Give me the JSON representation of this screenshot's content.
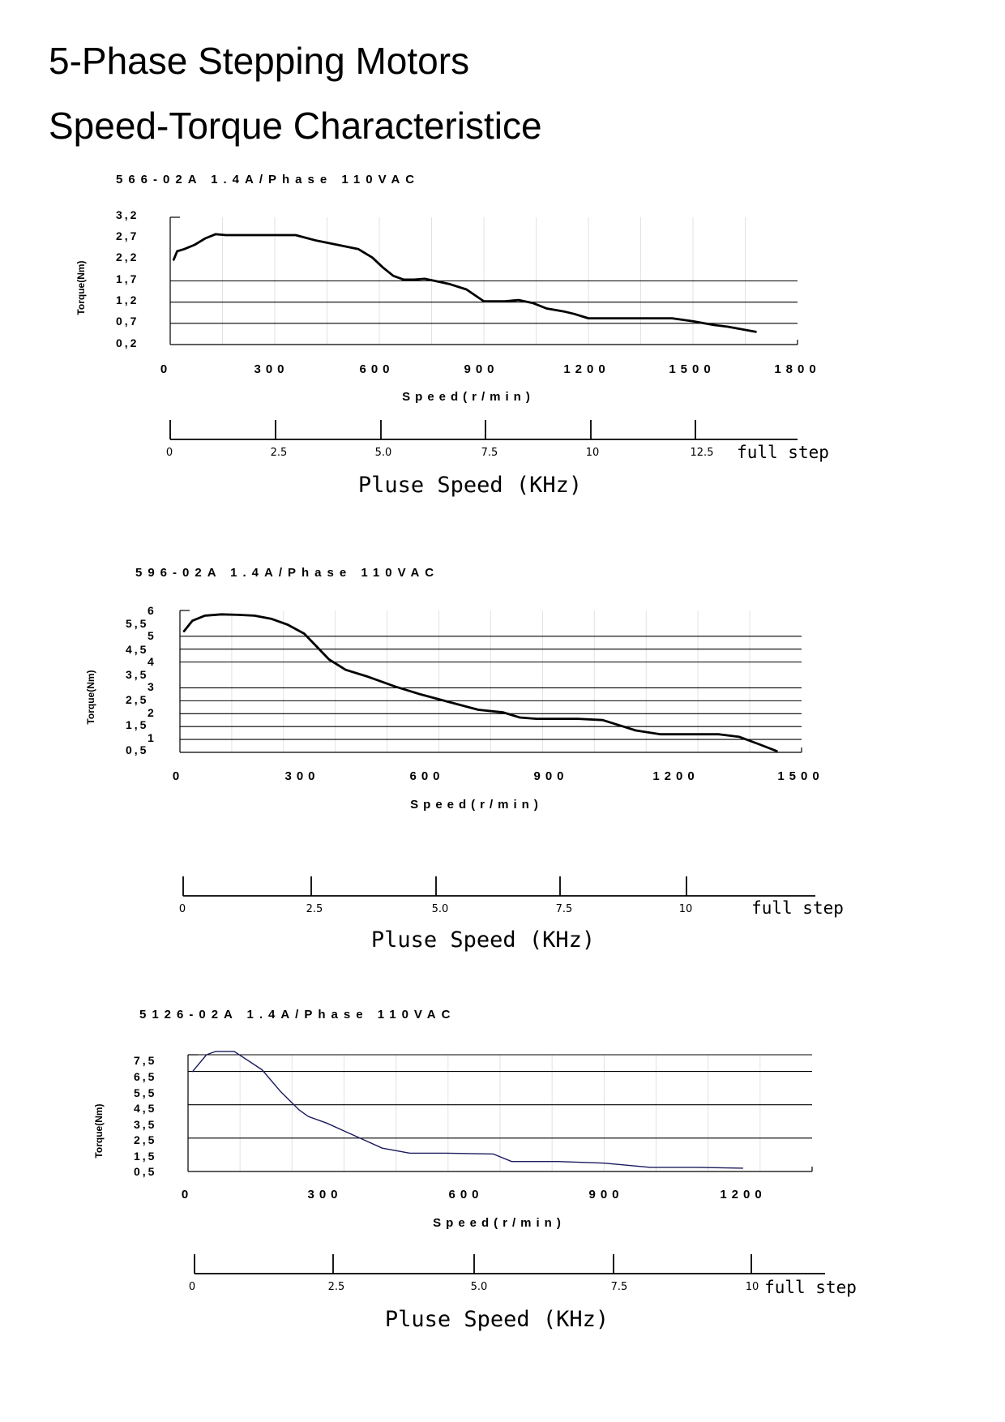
{
  "page": {
    "title_line1": "5-Phase Stepping Motors",
    "title_line2": "Speed-Torque Characteristice"
  },
  "chart_data": [
    {
      "type": "line",
      "header": "566-02A  1.4A/Phase  110VAC",
      "xlabel": "Speed(r/min)",
      "ylabel": "Torque(Nm)",
      "x_ticks": [
        "0",
        "300",
        "600",
        "900",
        "1200",
        "1500",
        "1800"
      ],
      "y_ticks": [
        "3.2",
        "2.7",
        "2.2",
        "1.7",
        "1.2",
        "0.7",
        "0.2"
      ],
      "xlim": [
        0,
        1800
      ],
      "ylim": [
        0.2,
        3.2
      ],
      "h_gridlines": [
        1.7,
        1.2,
        0.7
      ],
      "series": [
        {
          "x": [
            10,
            20,
            40,
            70,
            100,
            130,
            160,
            200,
            260,
            300,
            360,
            420,
            480,
            540,
            580,
            610,
            640,
            670,
            700,
            730,
            760,
            800,
            850,
            900,
            960,
            1000,
            1040,
            1080,
            1130,
            1160,
            1200,
            1260,
            1350,
            1440,
            1500,
            1560,
            1600,
            1680
          ],
          "y": [
            2.2,
            2.4,
            2.45,
            2.55,
            2.7,
            2.8,
            2.78,
            2.78,
            2.78,
            2.78,
            2.78,
            2.65,
            2.55,
            2.45,
            2.25,
            2.02,
            1.82,
            1.73,
            1.73,
            1.75,
            1.7,
            1.63,
            1.5,
            1.22,
            1.22,
            1.25,
            1.18,
            1.05,
            0.98,
            0.92,
            0.82,
            0.82,
            0.82,
            0.82,
            0.75,
            0.66,
            0.62,
            0.5
          ]
        }
      ],
      "pulse_axis": {
        "ticks": [
          "0",
          "2.5",
          "5.0",
          "7.5",
          "10",
          "12.5"
        ],
        "end_label": "full step",
        "title": "Pluse Speed (KHz)"
      }
    },
    {
      "type": "line",
      "header": "596-02A  1.4A/Phase  110VAC",
      "xlabel": "Speed(r/min)",
      "ylabel": "Torque(Nm)",
      "x_ticks": [
        "0",
        "300",
        "600",
        "900",
        "1200",
        "1500"
      ],
      "y_ticks_left": [
        "5.5",
        "4.5",
        "3.5",
        "2.5",
        "1.5",
        "0.5"
      ],
      "y_ticks_right": [
        "6",
        "5",
        "4",
        "3",
        "2",
        "1"
      ],
      "xlim": [
        0,
        1500
      ],
      "ylim": [
        0.5,
        6
      ],
      "h_gridlines": [
        5,
        4.5,
        4,
        3,
        2.5,
        2,
        1.5,
        1
      ],
      "series": [
        {
          "x": [
            10,
            30,
            60,
            100,
            140,
            180,
            220,
            260,
            300,
            330,
            360,
            400,
            450,
            520,
            580,
            650,
            720,
            780,
            820,
            860,
            900,
            960,
            1020,
            1060,
            1100,
            1160,
            1220,
            1300,
            1350,
            1400,
            1440
          ],
          "y": [
            5.2,
            5.6,
            5.8,
            5.85,
            5.83,
            5.8,
            5.68,
            5.45,
            5.1,
            4.6,
            4.1,
            3.7,
            3.45,
            3.05,
            2.75,
            2.45,
            2.15,
            2.05,
            1.85,
            1.8,
            1.8,
            1.8,
            1.75,
            1.55,
            1.35,
            1.2,
            1.2,
            1.2,
            1.1,
            0.8,
            0.55
          ]
        }
      ],
      "pulse_axis": {
        "ticks": [
          "0",
          "2.5",
          "5.0",
          "7.5",
          "10"
        ],
        "end_label": "full step",
        "title": "Pluse Speed (KHz)"
      }
    },
    {
      "type": "line",
      "header": "5126-02A  1.4A/Phase  110VAC",
      "xlabel": "Speed(r/min)",
      "ylabel": "Torque(Nm)",
      "x_ticks": [
        "0",
        "300",
        "600",
        "900",
        "1200"
      ],
      "y_ticks": [
        "7.5",
        "6.5",
        "5.5",
        "4.5",
        "3.5",
        "2.5",
        "1.5",
        "0.5"
      ],
      "xlim": [
        0,
        1350
      ],
      "ylim": [
        0.5,
        7.5
      ],
      "h_gridlines": [
        7.5,
        6.5,
        4.5,
        2.5
      ],
      "series": [
        {
          "color": "#1a1a5e",
          "x": [
            10,
            40,
            60,
            100,
            160,
            200,
            240,
            260,
            300,
            340,
            380,
            420,
            480,
            560,
            660,
            700,
            800,
            900,
            1000,
            1100,
            1200
          ],
          "y": [
            6.5,
            7.5,
            7.7,
            7.7,
            6.6,
            5.3,
            4.2,
            3.8,
            3.4,
            2.9,
            2.4,
            1.9,
            1.6,
            1.6,
            1.55,
            1.1,
            1.1,
            1.0,
            0.75,
            0.75,
            0.7
          ]
        }
      ],
      "pulse_axis": {
        "ticks": [
          "0",
          "2.5",
          "5.0",
          "7.5",
          "10"
        ],
        "end_label": "full step",
        "title": "Pluse Speed (KHz)"
      }
    }
  ]
}
